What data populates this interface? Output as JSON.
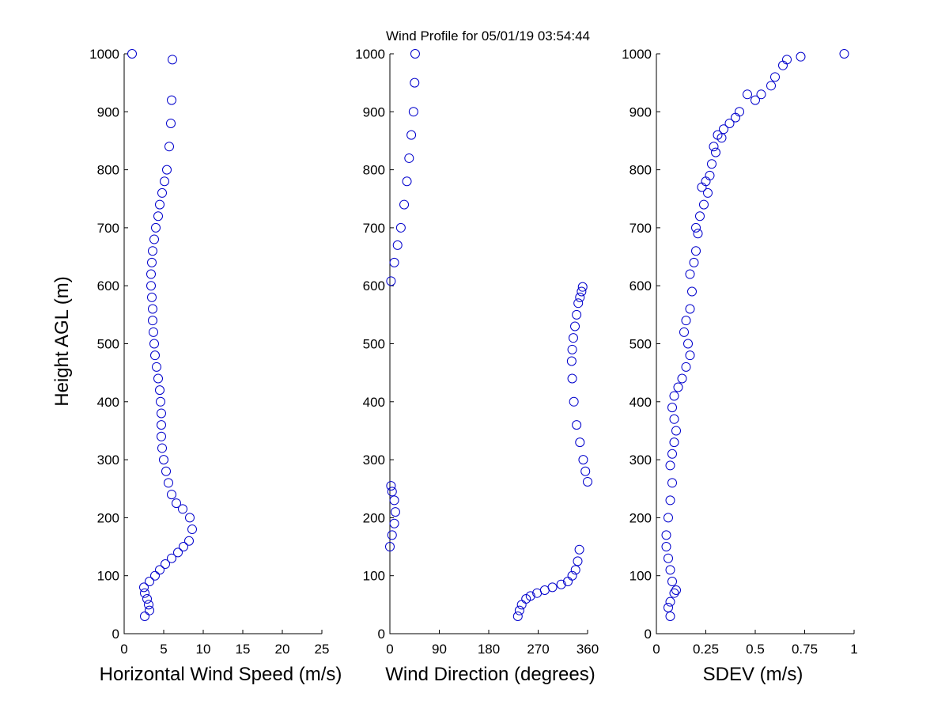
{
  "title": "Wind Profile for  05/01/19 03:54:44",
  "colors": {
    "marker": "#0000cc",
    "axis": "#000000",
    "background": "#ffffff"
  },
  "chart_data": [
    {
      "type": "scatter",
      "marker": "circle",
      "xlabel": "Horizontal Wind Speed (m/s)",
      "ylabel": "Height AGL (m)",
      "xlim": [
        0,
        25
      ],
      "ylim": [
        0,
        1000
      ],
      "xticks": [
        0,
        5,
        10,
        15,
        20,
        25
      ],
      "xtick_labels": [
        "0",
        "5",
        "10",
        "15",
        "20",
        "25"
      ],
      "yticks": [
        0,
        100,
        200,
        300,
        400,
        500,
        600,
        700,
        800,
        900,
        1000
      ],
      "ytick_labels": [
        "0",
        "100",
        "200",
        "300",
        "400",
        "500",
        "600",
        "700",
        "800",
        "900",
        "1000"
      ],
      "grid": false,
      "x": [
        2.6,
        3.2,
        3.1,
        2.9,
        2.6,
        2.5,
        3.2,
        3.9,
        4.5,
        5.2,
        6.0,
        6.8,
        7.5,
        8.2,
        8.6,
        8.3,
        7.4,
        6.6,
        6.0,
        5.6,
        5.3,
        5.0,
        4.8,
        4.7,
        4.7,
        4.7,
        4.6,
        4.5,
        4.3,
        4.1,
        3.9,
        3.8,
        3.7,
        3.6,
        3.6,
        3.5,
        3.4,
        3.4,
        3.5,
        3.6,
        3.8,
        4.0,
        4.3,
        4.5,
        4.8,
        5.1,
        5.4,
        5.7,
        5.9,
        6.0,
        6.1,
        1.0
      ],
      "y": [
        30,
        40,
        50,
        60,
        70,
        80,
        90,
        100,
        110,
        120,
        130,
        140,
        150,
        160,
        180,
        200,
        215,
        225,
        240,
        260,
        280,
        300,
        320,
        340,
        360,
        380,
        400,
        420,
        440,
        460,
        480,
        500,
        520,
        540,
        560,
        580,
        600,
        620,
        640,
        660,
        680,
        700,
        720,
        740,
        760,
        780,
        800,
        840,
        880,
        920,
        990,
        1000
      ]
    },
    {
      "type": "scatter",
      "marker": "circle",
      "xlabel": "Wind Direction (degrees)",
      "ylabel": "",
      "xlim": [
        0,
        360
      ],
      "ylim": [
        0,
        1000
      ],
      "xticks": [
        0,
        90,
        180,
        270,
        360
      ],
      "xtick_labels": [
        "0",
        "90",
        "180",
        "270",
        "360"
      ],
      "yticks": [
        0,
        100,
        200,
        300,
        400,
        500,
        600,
        700,
        800,
        900,
        1000
      ],
      "ytick_labels": [
        "0",
        "100",
        "200",
        "300",
        "400",
        "500",
        "600",
        "700",
        "800",
        "900",
        "1000"
      ],
      "grid": false,
      "x": [
        233,
        236,
        240,
        248,
        256,
        268,
        282,
        296,
        312,
        324,
        332,
        338,
        342,
        345,
        0,
        4,
        8,
        10,
        8,
        4,
        2,
        360,
        356,
        352,
        346,
        340,
        335,
        332,
        331,
        332,
        334,
        337,
        340,
        343,
        346,
        349,
        351,
        2,
        8,
        14,
        20,
        26,
        31,
        35,
        39,
        43,
        45,
        46
      ],
      "y": [
        30,
        40,
        50,
        60,
        65,
        70,
        75,
        80,
        85,
        90,
        100,
        110,
        125,
        145,
        150,
        170,
        190,
        210,
        230,
        245,
        255,
        262,
        280,
        300,
        330,
        360,
        400,
        440,
        470,
        490,
        510,
        530,
        550,
        570,
        580,
        590,
        598,
        608,
        640,
        670,
        700,
        740,
        780,
        820,
        860,
        900,
        950,
        1000
      ]
    },
    {
      "type": "scatter",
      "marker": "circle",
      "xlabel": "SDEV  (m/s)",
      "ylabel": "",
      "xlim": [
        0,
        1
      ],
      "ylim": [
        0,
        1000
      ],
      "xticks": [
        0,
        0.25,
        0.5,
        0.75,
        1
      ],
      "xtick_labels": [
        "0",
        "0.25",
        "0.5",
        "0.75",
        "1"
      ],
      "yticks": [
        0,
        100,
        200,
        300,
        400,
        500,
        600,
        700,
        800,
        900,
        1000
      ],
      "ytick_labels": [
        "0",
        "100",
        "200",
        "300",
        "400",
        "500",
        "600",
        "700",
        "800",
        "900",
        "1000"
      ],
      "grid": false,
      "x": [
        0.07,
        0.06,
        0.07,
        0.09,
        0.1,
        0.08,
        0.07,
        0.06,
        0.05,
        0.05,
        0.06,
        0.07,
        0.08,
        0.07,
        0.08,
        0.09,
        0.1,
        0.09,
        0.08,
        0.09,
        0.11,
        0.13,
        0.15,
        0.17,
        0.16,
        0.14,
        0.15,
        0.17,
        0.18,
        0.17,
        0.19,
        0.2,
        0.21,
        0.2,
        0.22,
        0.24,
        0.26,
        0.23,
        0.25,
        0.27,
        0.28,
        0.3,
        0.29,
        0.31,
        0.34,
        0.33,
        0.37,
        0.42,
        0.4,
        0.46,
        0.5,
        0.53,
        0.58,
        0.6,
        0.64,
        0.66,
        0.73,
        0.95
      ],
      "y": [
        30,
        45,
        55,
        70,
        75,
        90,
        110,
        130,
        150,
        170,
        200,
        230,
        260,
        290,
        310,
        330,
        350,
        370,
        390,
        410,
        425,
        440,
        460,
        480,
        500,
        520,
        540,
        560,
        590,
        620,
        640,
        660,
        690,
        700,
        720,
        740,
        760,
        770,
        780,
        790,
        810,
        830,
        840,
        860,
        870,
        855,
        880,
        900,
        890,
        930,
        920,
        930,
        945,
        960,
        980,
        990,
        995,
        1000
      ]
    }
  ]
}
